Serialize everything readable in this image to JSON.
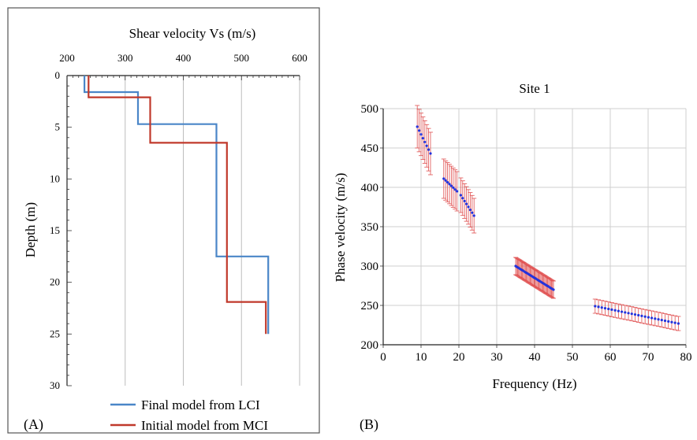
{
  "chart_data": [
    {
      "panel_label": "(A)",
      "type": "line",
      "title": "Shear velocity Vs (m/s)",
      "xlabel": "",
      "ylabel": "Depth (m)",
      "xlim": [
        200,
        600
      ],
      "ylim": [
        0,
        30
      ],
      "y_inverted": true,
      "x_axis_position": "top",
      "xticks": [
        "200",
        "300",
        "400",
        "500",
        "600"
      ],
      "yticks": [
        "0",
        "5",
        "10",
        "15",
        "20",
        "25",
        "30"
      ],
      "vertical_grid": true,
      "legend_position": "bottom",
      "series": [
        {
          "name": "Final model from LCI",
          "color": "#4a86c8",
          "points": [
            [
              230,
              0
            ],
            [
              230,
              1.6
            ],
            [
              322,
              1.6
            ],
            [
              322,
              4.7
            ],
            [
              457,
              4.7
            ],
            [
              457,
              17.5
            ],
            [
              546,
              17.5
            ],
            [
              546,
              25
            ]
          ]
        },
        {
          "name": "Initial model from MCI",
          "color": "#c0392b",
          "points": [
            [
              237,
              0
            ],
            [
              237,
              2.1
            ],
            [
              343,
              2.1
            ],
            [
              343,
              6.5
            ],
            [
              475,
              6.5
            ],
            [
              475,
              21.9
            ],
            [
              542,
              21.9
            ],
            [
              542,
              25
            ]
          ]
        }
      ]
    },
    {
      "panel_label": "(B)",
      "type": "scatter",
      "title": "Site 1",
      "xlabel": "Frequency (Hz)",
      "ylabel": "Phase velocity (m/s)",
      "xlim": [
        0,
        80
      ],
      "ylim": [
        200,
        500
      ],
      "xticks": [
        "0",
        "10",
        "20",
        "30",
        "40",
        "50",
        "60",
        "70",
        "80"
      ],
      "yticks": [
        "200",
        "250",
        "300",
        "350",
        "400",
        "450",
        "500"
      ],
      "grid": true,
      "point_color": "#2233dd",
      "errorbar_color": "#e05050",
      "segments": [
        {
          "f_start": 9,
          "f_end": 12.5,
          "v_start": 477,
          "v_end": 443,
          "n": 8,
          "err": 27
        },
        {
          "f_start": 16,
          "f_end": 19.5,
          "v_start": 411,
          "v_end": 395,
          "n": 8,
          "err": 25
        },
        {
          "f_start": 20.5,
          "f_end": 24,
          "v_start": 390,
          "v_end": 364,
          "n": 8,
          "err": 22
        },
        {
          "f_start": 35,
          "f_end": 45,
          "v_start": 300,
          "v_end": 270,
          "n": 40,
          "err": 11
        },
        {
          "f_start": 56,
          "f_end": 78,
          "v_start": 249,
          "v_end": 227,
          "n": 26,
          "err": 9
        }
      ]
    }
  ]
}
